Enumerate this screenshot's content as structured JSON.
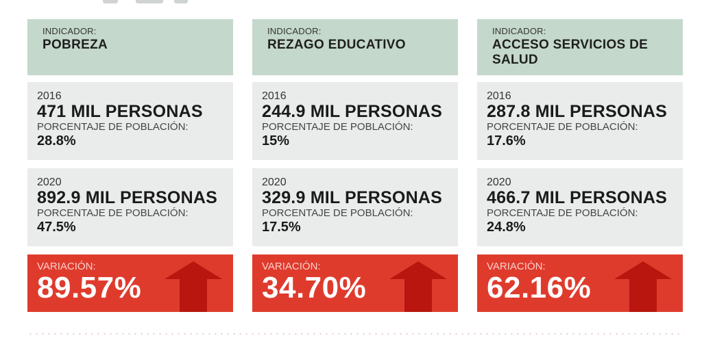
{
  "columns": [
    {
      "indicator_label": "INDICADOR:",
      "indicator_name": "POBREZA",
      "years": [
        {
          "year": "2016",
          "people": "471 MIL PERSONAS",
          "pct_label": "PORCENTAJE DE POBLACIÓN:",
          "pct": "28.8%"
        },
        {
          "year": "2020",
          "people": "892.9 MIL PERSONAS",
          "pct_label": "PORCENTAJE DE POBLACIÓN:",
          "pct": "47.5%"
        }
      ],
      "variation_label": "VARIACIÓN:",
      "variation_value": "89.57%",
      "variation_icon": "arrow-up-icon"
    },
    {
      "indicator_label": "INDICADOR:",
      "indicator_name": "REZAGO EDUCATIVO",
      "years": [
        {
          "year": "2016",
          "people": "244.9 MIL PERSONAS",
          "pct_label": "PORCENTAJE DE POBLACIÓN:",
          "pct": "15%"
        },
        {
          "year": "2020",
          "people": "329.9 MIL PERSONAS",
          "pct_label": "PORCENTAJE DE POBLACIÓN:",
          "pct": "17.5%"
        }
      ],
      "variation_label": "VARIACIÓN:",
      "variation_value": "34.70%",
      "variation_icon": "arrow-up-icon"
    },
    {
      "indicator_label": "INDICADOR:",
      "indicator_name": "ACCESO SERVICIOS DE SALUD",
      "years": [
        {
          "year": "2016",
          "people": "287.8 MIL PERSONAS",
          "pct_label": "PORCENTAJE DE POBLACIÓN:",
          "pct": "17.6%"
        },
        {
          "year": "2020",
          "people": "466.7 MIL PERSONAS",
          "pct_label": "PORCENTAJE DE POBLACIÓN:",
          "pct": "24.8%"
        }
      ],
      "variation_label": "VARIACIÓN:",
      "variation_value": "62.16%",
      "variation_icon": "arrow-up-icon"
    }
  ],
  "colors": {
    "header_bg": "#c4d8cb",
    "box_bg": "#e9ecea",
    "variation_bg": "#df3b2d",
    "arrow": "#b8160f"
  }
}
